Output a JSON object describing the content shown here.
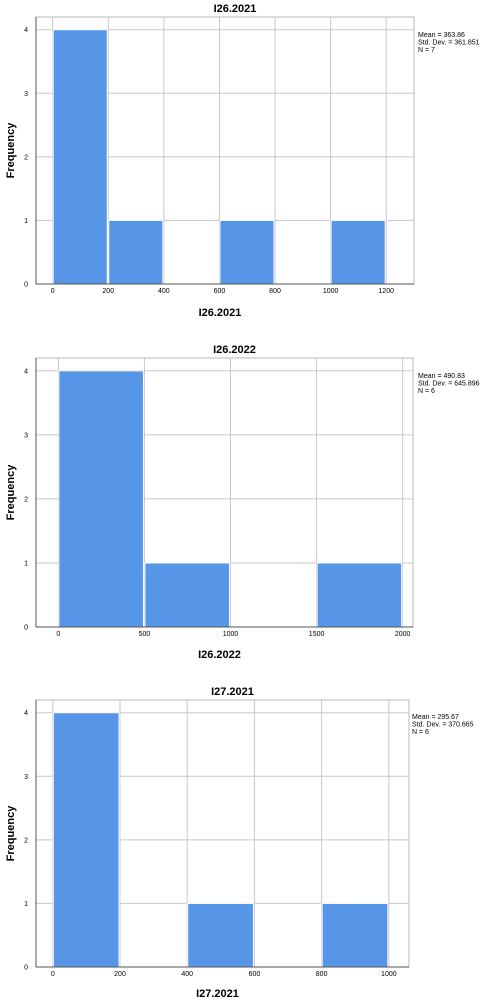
{
  "chart_data": [
    {
      "type": "bar",
      "title": "I26.2021",
      "xlabel": "I26.2021",
      "ylabel": "Frequency",
      "bins": [
        {
          "start": 0,
          "end": 200,
          "count": 4
        },
        {
          "start": 200,
          "end": 400,
          "count": 1
        },
        {
          "start": 400,
          "end": 600,
          "count": 0
        },
        {
          "start": 600,
          "end": 800,
          "count": 1
        },
        {
          "start": 800,
          "end": 1000,
          "count": 0
        },
        {
          "start": 1000,
          "end": 1200,
          "count": 1
        }
      ],
      "xticks": [
        0,
        200,
        400,
        600,
        800,
        1000,
        1200
      ],
      "yticks": [
        0,
        1,
        2,
        3,
        4
      ],
      "xlim": [
        -60,
        1300
      ],
      "ylim": [
        0,
        4.2
      ],
      "grid": true,
      "bar_color": "#5796e6",
      "stats": [
        "Mean = 363.86",
        "Std. Dev. = 361.851",
        "N = 7"
      ]
    },
    {
      "type": "bar",
      "title": "I26.2022",
      "xlabel": "I26.2022",
      "ylabel": "Frequency",
      "bins": [
        {
          "start": 0,
          "end": 500,
          "count": 4
        },
        {
          "start": 500,
          "end": 1000,
          "count": 1
        },
        {
          "start": 1000,
          "end": 1500,
          "count": 0
        },
        {
          "start": 1500,
          "end": 2000,
          "count": 1
        }
      ],
      "xticks": [
        0,
        500,
        1000,
        1500,
        2000
      ],
      "yticks": [
        0,
        1,
        2,
        3,
        4
      ],
      "xlim": [
        -130,
        2060
      ],
      "ylim": [
        0,
        4.2
      ],
      "grid": true,
      "bar_color": "#5796e6",
      "stats": [
        "Mean = 490.83",
        "Std. Dev. = 645.896",
        "N = 6"
      ]
    },
    {
      "type": "bar",
      "title": "I27.2021",
      "xlabel": "I27.2021",
      "ylabel": "Frequency",
      "bins": [
        {
          "start": 0,
          "end": 200,
          "count": 4
        },
        {
          "start": 200,
          "end": 400,
          "count": 0
        },
        {
          "start": 400,
          "end": 600,
          "count": 1
        },
        {
          "start": 600,
          "end": 800,
          "count": 0
        },
        {
          "start": 800,
          "end": 1000,
          "count": 1
        }
      ],
      "xticks": [
        0,
        200,
        400,
        600,
        800,
        1000
      ],
      "yticks": [
        0,
        1,
        2,
        3,
        4
      ],
      "xlim": [
        -50,
        1060
      ],
      "ylim": [
        0,
        4.2
      ],
      "grid": true,
      "bar_color": "#5796e6",
      "stats": [
        "Mean = 295.67",
        "Std. Dev. = 370.665",
        "N = 6"
      ]
    }
  ]
}
